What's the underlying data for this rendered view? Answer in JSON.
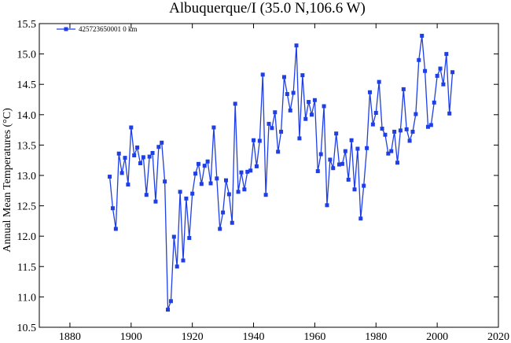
{
  "chart_data": {
    "type": "line",
    "title": "Albuquerque/I (35.0 N,106.6 W)",
    "ylabel": "Annual Mean Temperatures (°C)",
    "xlabel": "",
    "xlim": [
      1870,
      2020
    ],
    "ylim": [
      10.5,
      15.5
    ],
    "x_ticks": [
      "1880",
      "1900",
      "1920",
      "1940",
      "1960",
      "1980",
      "2000",
      "2020"
    ],
    "y_ticks": [
      "10.5",
      "11.0",
      "11.5",
      "12.0",
      "12.5",
      "13.0",
      "13.5",
      "14.0",
      "14.5",
      "15.0",
      "15.5"
    ],
    "legend": {
      "position": "top-left",
      "label": "425723650001  0 km"
    },
    "grid": false,
    "series": [
      {
        "name": "425723650001  0 km",
        "color": "#1f3fe6",
        "marker": "square",
        "x": [
          1893,
          1894,
          1895,
          1896,
          1897,
          1898,
          1899,
          1900,
          1901,
          1902,
          1903,
          1904,
          1905,
          1906,
          1907,
          1908,
          1909,
          1910,
          1911,
          1912,
          1913,
          1914,
          1915,
          1916,
          1917,
          1918,
          1919,
          1920,
          1921,
          1922,
          1923,
          1924,
          1925,
          1926,
          1927,
          1928,
          1929,
          1930,
          1931,
          1932,
          1933,
          1934,
          1935,
          1936,
          1937,
          1938,
          1939,
          1940,
          1941,
          1942,
          1943,
          1944,
          1945,
          1946,
          1947,
          1948,
          1949,
          1950,
          1951,
          1952,
          1953,
          1954,
          1955,
          1956,
          1957,
          1958,
          1959,
          1960,
          1961,
          1962,
          1963,
          1964,
          1965,
          1966,
          1967,
          1968,
          1969,
          1970,
          1971,
          1972,
          1973,
          1974,
          1975,
          1976,
          1977,
          1978,
          1979,
          1980,
          1981,
          1982,
          1983,
          1984,
          1985,
          1986,
          1987,
          1988,
          1989,
          1990,
          1991,
          1992,
          1993,
          1994,
          1995,
          1996,
          1997,
          1998,
          1999,
          2000,
          2001,
          2002,
          2003,
          2004,
          2005
        ],
        "values": [
          12.98,
          12.46,
          12.12,
          13.36,
          13.04,
          13.29,
          12.85,
          13.79,
          13.33,
          13.46,
          13.2,
          13.3,
          12.68,
          13.31,
          13.37,
          12.57,
          13.47,
          13.54,
          12.9,
          10.79,
          10.93,
          11.99,
          11.5,
          12.73,
          11.6,
          12.62,
          11.97,
          12.7,
          13.03,
          13.19,
          12.86,
          13.16,
          13.23,
          12.87,
          13.79,
          12.95,
          12.12,
          12.39,
          12.92,
          12.69,
          12.22,
          14.18,
          12.73,
          13.05,
          12.77,
          13.06,
          13.08,
          13.58,
          13.15,
          13.57,
          14.66,
          12.68,
          13.85,
          13.78,
          14.04,
          13.39,
          13.72,
          14.62,
          14.34,
          14.07,
          14.36,
          15.14,
          13.61,
          14.65,
          13.93,
          14.21,
          14.0,
          14.24,
          13.07,
          13.35,
          14.14,
          12.51,
          13.26,
          13.12,
          13.69,
          13.18,
          13.19,
          13.4,
          12.93,
          13.58,
          12.77,
          13.44,
          12.29,
          12.83,
          13.45,
          14.37,
          13.84,
          14.03,
          14.54,
          13.77,
          13.67,
          13.36,
          13.4,
          13.72,
          13.21,
          13.74,
          14.42,
          13.76,
          13.57,
          13.72,
          14.01,
          14.9,
          15.3,
          14.72,
          13.8,
          13.83,
          14.2,
          14.64,
          14.76,
          14.5,
          15.0,
          14.02,
          14.7
        ]
      }
    ]
  }
}
